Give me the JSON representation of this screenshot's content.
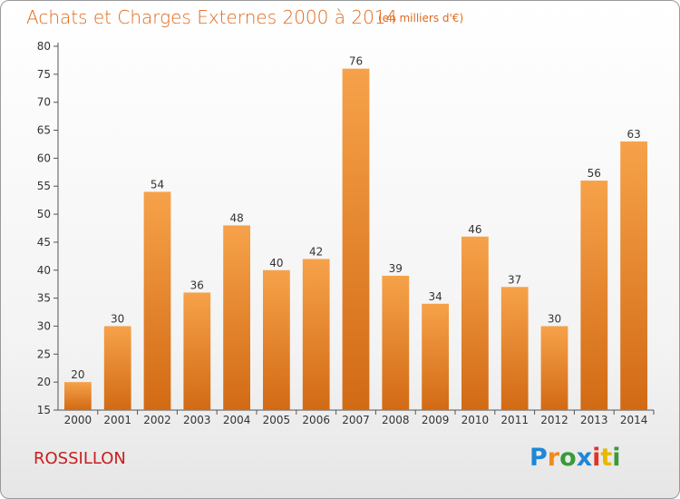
{
  "header": {
    "title": "Achats et Charges Externes 2000 à 2014",
    "subtitle": "(en milliers d'€)"
  },
  "footer": {
    "location": "ROSSILLON",
    "logo": "Proxiti"
  },
  "colors": {
    "title": "#e06a1e",
    "location": "#c81e1e",
    "bar_top": "#f6a24a",
    "bar_bottom": "#d26a14",
    "logo_letters": [
      "#1f87d6",
      "#f08a1c",
      "#3a9a3a",
      "#1f87d6",
      "#e0342b",
      "#e6b800",
      "#3a9a3a"
    ]
  },
  "chart_data": {
    "type": "bar",
    "title": "Achats et Charges Externes 2000 à 2014",
    "subtitle": "(en milliers d'€)",
    "categories": [
      "2000",
      "2001",
      "2002",
      "2003",
      "2004",
      "2005",
      "2006",
      "2007",
      "2008",
      "2009",
      "2010",
      "2011",
      "2012",
      "2013",
      "2014"
    ],
    "values": [
      20,
      30,
      54,
      36,
      48,
      40,
      42,
      76,
      39,
      34,
      46,
      37,
      30,
      56,
      63
    ],
    "ylim": [
      15,
      80
    ],
    "yticks": [
      15,
      20,
      25,
      30,
      35,
      40,
      45,
      50,
      55,
      60,
      65,
      70,
      75,
      80
    ],
    "xlabel": "",
    "ylabel": "",
    "grid": false,
    "data_labels": true
  }
}
